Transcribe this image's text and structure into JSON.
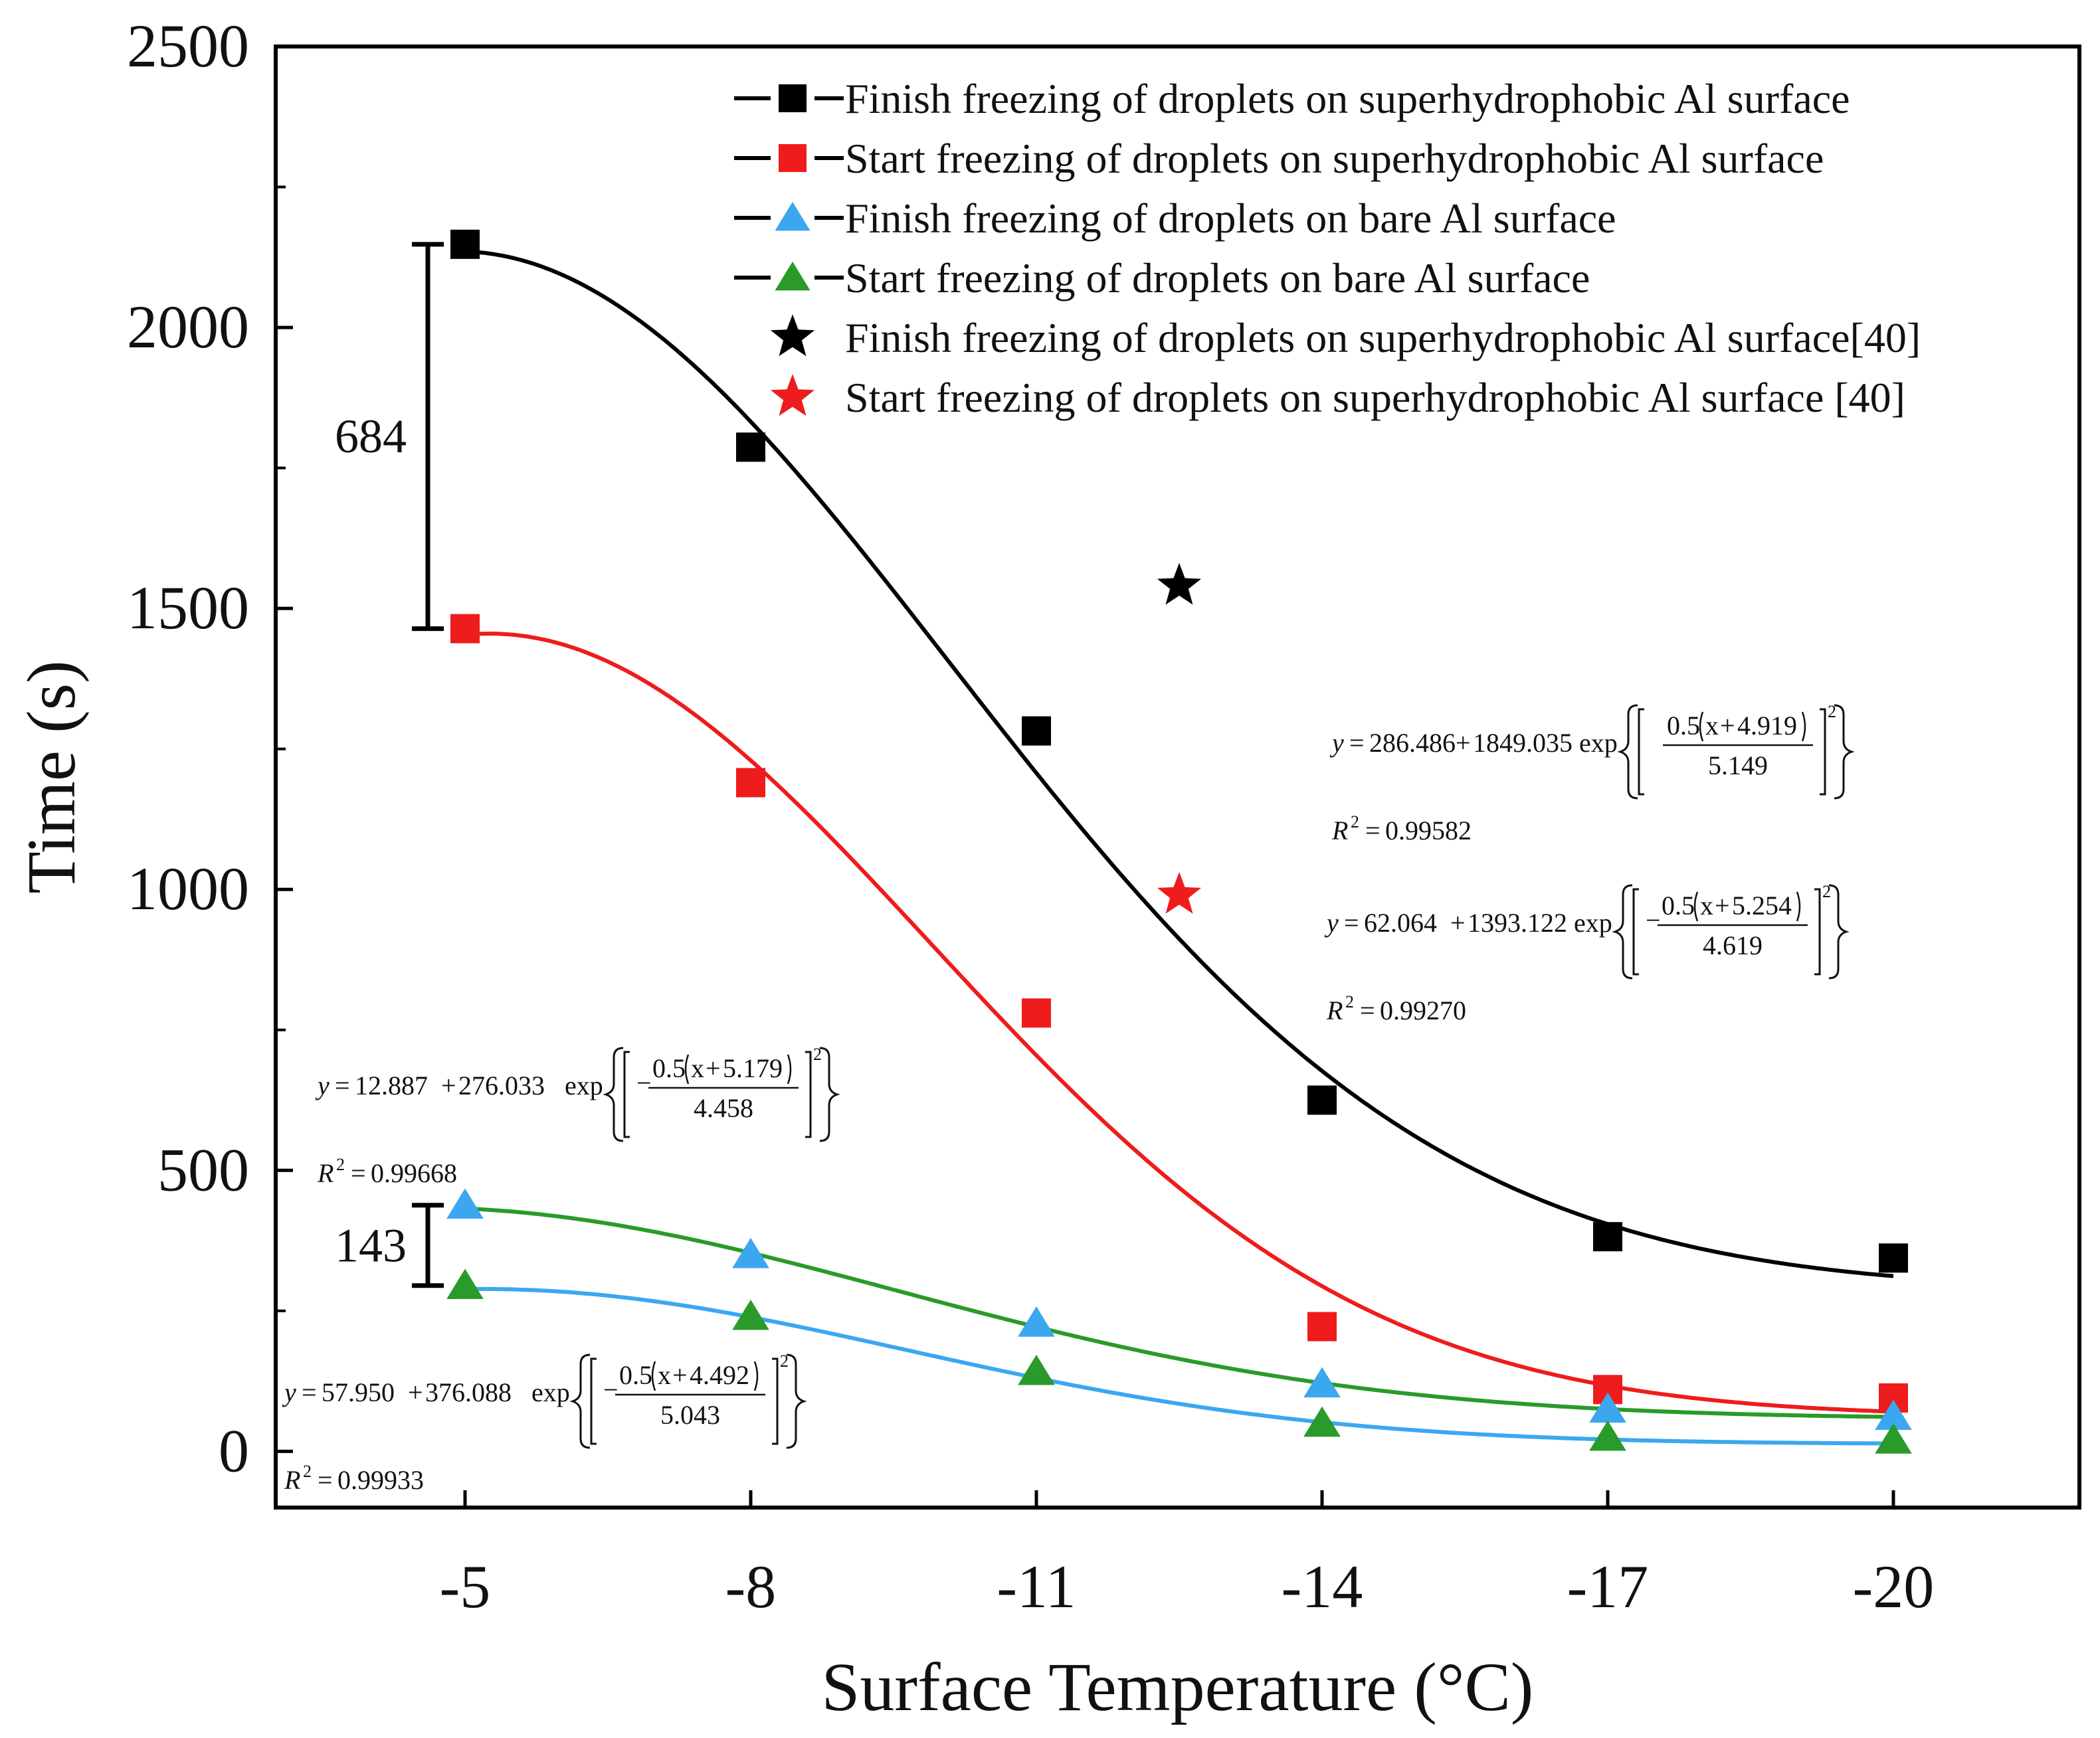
{
  "chart_data": {
    "type": "scatter",
    "title": "",
    "xlabel": "Surface Temperature (°C)",
    "ylabel": "Time (s)",
    "categories": [
      "-5",
      "-8",
      "-11",
      "-14",
      "-17",
      "-20"
    ],
    "ylim": [
      -100,
      2500
    ],
    "yticks": [
      "0",
      "500",
      "1000",
      "1500",
      "2000",
      "2500"
    ],
    "series": [
      {
        "name": "Finish freezing of droplets on superhydrophobic Al surface",
        "marker": "square",
        "color": "#000000",
        "fit": true,
        "fit_params": {
          "y0": 286.486,
          "A": 1849.035,
          "xc": -4.919,
          "w": 5.149
        },
        "x": [
          -5,
          -8,
          -11,
          -14,
          -17,
          -20
        ],
        "values": [
          2148,
          1787,
          1282,
          625,
          382,
          344
        ]
      },
      {
        "name": "Start freezing of droplets on superhydrophobic Al surface",
        "marker": "square",
        "color": "#ee1c1c",
        "fit": true,
        "fit_params": {
          "y0": 62.064,
          "A": 1393.122,
          "xc": -5.254,
          "w": 4.619
        },
        "x": [
          -5,
          -8,
          -11,
          -14,
          -17,
          -20
        ],
        "values": [
          1464,
          1190,
          780,
          222,
          110,
          95
        ]
      },
      {
        "name": "Finish freezing of droplets on bare Al surface",
        "marker": "triangle",
        "color": "#3ba7f0",
        "fit": true,
        "fit_params": {
          "y0": 12.887,
          "A": 276.033,
          "xc": -5.179,
          "w": 4.458
        },
        "x": [
          -5,
          -8,
          -11,
          -14,
          -17,
          -20
        ],
        "values": [
          438,
          350,
          228,
          120,
          75,
          62
        ]
      },
      {
        "name": "Start freezing of droplets on bare Al surface",
        "marker": "triangle",
        "color": "#2a9a2a",
        "fit": true,
        "fit_params": {
          "y0": 57.95,
          "A": 376.088,
          "xc": -4.492,
          "w": 5.043
        },
        "x": [
          -5,
          -8,
          -11,
          -14,
          -17,
          -20
        ],
        "values": [
          295,
          240,
          142,
          50,
          25,
          20
        ]
      },
      {
        "name": "Finish freezing of droplets on superhydrophobic Al surface[40]",
        "marker": "star",
        "color": "#000000",
        "fit": false,
        "x": [
          -12.5
        ],
        "values": [
          1540
        ]
      },
      {
        "name": "Start freezing of droplets on superhydrophobic Al surface [40]",
        "marker": "star",
        "color": "#ee1c1c",
        "fit": false,
        "x": [
          -12.5
        ],
        "values": [
          990
        ]
      }
    ],
    "annotations": {
      "gap_top": {
        "label": "684",
        "from": 1464,
        "to": 2148,
        "x": -5
      },
      "gap_bottom": {
        "label": "143",
        "from": 295,
        "to": 438,
        "x": -5
      }
    },
    "equations": [
      {
        "y0": "286.486",
        "A": "1849.035",
        "minus": "",
        "shift": "4.919",
        "w": "5.149",
        "r2": "0.99582"
      },
      {
        "y0": "62.064",
        "A": "1393.122",
        "minus": "−",
        "shift": "5.254",
        "w": "4.619",
        "r2": "0.99270"
      },
      {
        "y0": "12.887",
        "A": "276.033",
        "minus": "−",
        "shift": "5.179",
        "w": "4.458",
        "r2": "0.99668"
      },
      {
        "y0": "57.950",
        "A": "376.088",
        "minus": "−",
        "shift": "4.492",
        "w": "5.043",
        "r2": "0.99933"
      }
    ],
    "equation_parts": {
      "y": "y",
      "eq": "=",
      "plus": "+",
      "exp": "exp",
      "coef": "0.5",
      "x": "x",
      "r2_label": "R",
      "sup": "2"
    }
  }
}
